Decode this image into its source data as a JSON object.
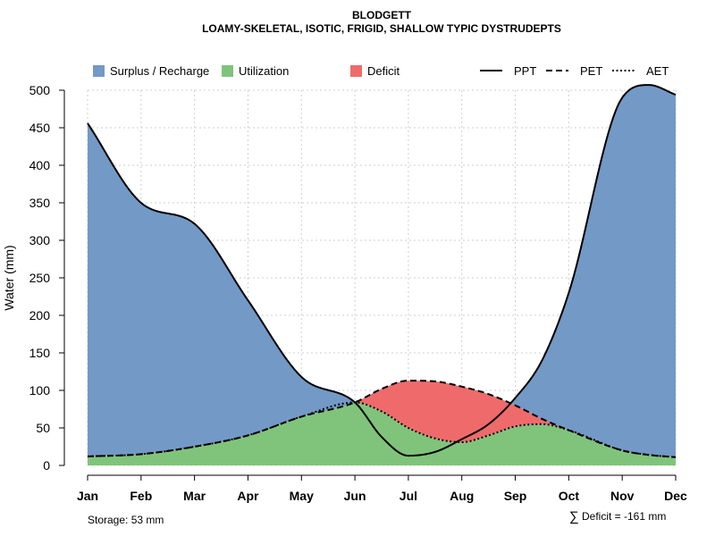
{
  "chart_data": {
    "type": "area",
    "title": "BLODGETT",
    "subtitle": "LOAMY-SKELETAL, ISOTIC, FRIGID, SHALLOW TYPIC DYSTRUDEPTS",
    "xlabel": "",
    "ylabel": "Water (mm)",
    "ylim": [
      0,
      500
    ],
    "yticks": [
      "0",
      "50",
      "100",
      "150",
      "200",
      "250",
      "300",
      "350",
      "400",
      "450",
      "500"
    ],
    "categories": [
      "Jan",
      "Feb",
      "Mar",
      "Apr",
      "May",
      "Jun",
      "Jul",
      "Aug",
      "Sep",
      "Oct",
      "Nov",
      "Dec"
    ],
    "x": [
      1,
      2,
      3,
      4,
      5,
      6,
      6.5,
      7,
      7.5,
      8,
      8.5,
      9,
      9.5,
      10,
      11,
      11.5,
      12
    ],
    "series": [
      {
        "name": "PPT",
        "style": "solid",
        "values": [
          456,
          350,
          322,
          220,
          118,
          84,
          38,
          13,
          18,
          35,
          55,
          90,
          140,
          230,
          490,
          507,
          494
        ]
      },
      {
        "name": "PET",
        "style": "dashed",
        "values": [
          12,
          15,
          25,
          40,
          65,
          84,
          102,
          113,
          112,
          105,
          95,
          80,
          62,
          47,
          20,
          14,
          11
        ]
      },
      {
        "name": "AET",
        "style": "dotted",
        "values": [
          12,
          15,
          25,
          40,
          65,
          84,
          72,
          50,
          36,
          31,
          40,
          52,
          55,
          47,
          20,
          14,
          11
        ]
      }
    ],
    "regions": [
      {
        "name": "Surplus / Recharge",
        "color": "#7399c6",
        "lower": "PET",
        "upper": "PPT",
        "range": [
          1,
          6
        ]
      },
      {
        "name": "Surplus / Recharge",
        "color": "#7399c6",
        "lower": "PET",
        "upper": "PPT",
        "range": [
          8.6,
          12
        ]
      },
      {
        "name": "Utilization",
        "color": "#80c47b",
        "lower": "zero",
        "upper": "AET",
        "range": [
          1,
          12
        ]
      },
      {
        "name": "Deficit",
        "color": "#ef6b6b",
        "lower": "AET",
        "upper": "PET",
        "range": [
          6,
          10
        ]
      }
    ],
    "legend": {
      "placement": "top",
      "fills": [
        {
          "label": "Surplus / Recharge",
          "color": "#7399c6"
        },
        {
          "label": "Utilization",
          "color": "#80c47b"
        },
        {
          "label": "Deficit",
          "color": "#ef6b6b"
        }
      ],
      "lines": [
        {
          "label": "PPT",
          "style": "solid"
        },
        {
          "label": "PET",
          "style": "dashed"
        },
        {
          "label": "AET",
          "style": "dotted"
        }
      ]
    },
    "annotations": {
      "storage": "Storage: 53 mm",
      "deficit_symbol": "∑",
      "deficit": "Deficit = -161 mm"
    }
  }
}
